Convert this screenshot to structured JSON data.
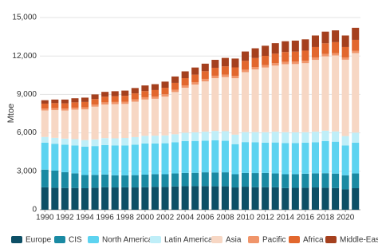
{
  "chart_data": {
    "type": "stacked_bar",
    "y_label": "Mtoe",
    "categories": [
      "1990",
      null,
      "1992",
      null,
      "1994",
      null,
      "1996",
      null,
      "1998",
      null,
      "2000",
      null,
      "2002",
      null,
      "2004",
      null,
      "2006",
      null,
      "2008",
      null,
      "2010",
      null,
      "2012",
      null,
      "2014",
      null,
      "2016",
      null,
      "2018",
      null,
      "2020",
      null
    ],
    "ylim": [
      0,
      15000
    ],
    "yticks": [
      0,
      {
        "value": 3000,
        "label": "3,000"
      },
      {
        "value": 6000,
        "label": "6,000"
      },
      {
        "value": 9000,
        "label": "9,000"
      },
      {
        "value": 12000,
        "label": "12,000"
      },
      {
        "value": 15000,
        "label": "15,000"
      }
    ],
    "grid": true,
    "legend": "bottom",
    "series": [
      {
        "name": "Europe",
        "color": "#0d4f66",
        "values": [
          1750,
          1720,
          1700,
          1700,
          1680,
          1720,
          1760,
          1740,
          1750,
          1740,
          1760,
          1790,
          1780,
          1820,
          1840,
          1840,
          1850,
          1830,
          1830,
          1740,
          1800,
          1760,
          1760,
          1750,
          1690,
          1710,
          1720,
          1740,
          1720,
          1690,
          1590,
          1680
        ]
      },
      {
        "name": "CIS",
        "color": "#1a8aa3",
        "values": [
          1380,
          1330,
          1230,
          1140,
          1030,
          1000,
          990,
          950,
          940,
          960,
          980,
          990,
          990,
          1010,
          1030,
          1040,
          1070,
          1080,
          1090,
          1030,
          1070,
          1100,
          1110,
          1080,
          1080,
          1070,
          1090,
          1100,
          1130,
          1130,
          1100,
          1150
        ]
      },
      {
        "name": "North America",
        "color": "#5dd3f0",
        "values": [
          2100,
          2100,
          2150,
          2180,
          2220,
          2250,
          2300,
          2320,
          2330,
          2380,
          2430,
          2390,
          2420,
          2440,
          2490,
          2490,
          2470,
          2510,
          2460,
          2350,
          2410,
          2400,
          2360,
          2420,
          2440,
          2430,
          2420,
          2430,
          2510,
          2490,
          2320,
          2400
        ]
      },
      {
        "name": "Latin America",
        "color": "#bfeef8",
        "values": [
          450,
          460,
          470,
          490,
          510,
          520,
          540,
          560,
          580,
          590,
          600,
          610,
          610,
          620,
          650,
          670,
          700,
          730,
          750,
          740,
          780,
          800,
          820,
          840,
          840,
          830,
          820,
          820,
          810,
          800,
          740,
          790
        ]
      },
      {
        "name": "Asia",
        "color": "#f7d7c4",
        "values": [
          2070,
          2168,
          2195,
          2302,
          2388,
          2554,
          2620,
          2668,
          2658,
          2764,
          2830,
          2880,
          3028,
          3296,
          3514,
          3732,
          3932,
          4120,
          4220,
          4405,
          4678,
          4890,
          5048,
          5158,
          5310,
          5330,
          5390,
          5608,
          5800,
          5932,
          5958,
          6200
        ]
      },
      {
        "name": "Pacific",
        "color": "#f0956a",
        "values": [
          150,
          152,
          155,
          158,
          162,
          166,
          170,
          172,
          172,
          176,
          180,
          180,
          182,
          184,
          186,
          188,
          188,
          190,
          190,
          185,
          192,
          190,
          192,
          192,
          190,
          190,
          190,
          192,
          190,
          188,
          182,
          180
        ]
      },
      {
        "name": "Africa",
        "color": "#e2672e",
        "values": [
          380,
          390,
          400,
          410,
          420,
          430,
          440,
          450,
          460,
          470,
          480,
          500,
          510,
          530,
          560,
          580,
          600,
          620,
          650,
          660,
          690,
          700,
          720,
          740,
          760,
          780,
          790,
          810,
          830,
          850,
          810,
          860
        ]
      },
      {
        "name": "Middle-East",
        "color": "#a5401e",
        "values": [
          270,
          280,
          300,
          320,
          340,
          360,
          380,
          390,
          410,
          420,
          440,
          460,
          480,
          500,
          530,
          560,
          590,
          620,
          660,
          690,
          730,
          760,
          790,
          820,
          840,
          860,
          880,
          900,
          910,
          920,
          900,
          940
        ]
      }
    ]
  }
}
